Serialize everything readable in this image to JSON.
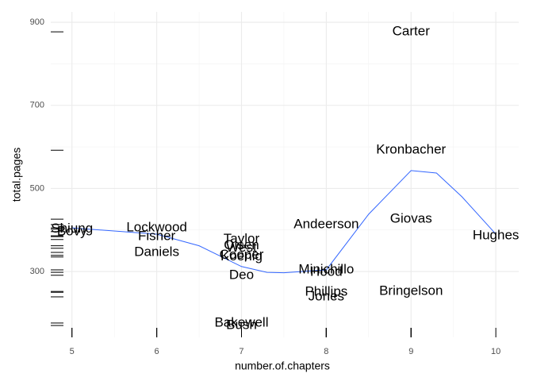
{
  "chart_data": {
    "type": "scatter",
    "x_label": "number.of.chapters",
    "y_label": "total.pages",
    "labels": [
      "Carter",
      "Kronbacher",
      "Giovas",
      "Bringelson",
      "Hughes",
      "Andeerson",
      "Minichillo",
      "Hood",
      "Phillips",
      "Jones",
      "Taylor",
      "Olsen",
      "West",
      "Cooper",
      "Koenig",
      "Deo",
      "Bakewell",
      "Bush",
      "Lockwood",
      "Fisher",
      "Daniels",
      "Shiung",
      "Bovy"
    ],
    "x": [
      9,
      9,
      9,
      9,
      10,
      8,
      8,
      8,
      8,
      8,
      7,
      7,
      7,
      7,
      7,
      7,
      7,
      7,
      6,
      6,
      6,
      5,
      5
    ],
    "values": [
      877,
      592,
      426,
      252,
      386,
      413,
      304,
      298,
      250,
      239,
      377,
      362,
      356,
      339,
      335,
      291,
      176,
      170,
      405,
      384,
      346,
      402,
      396
    ],
    "smooth": {
      "color": "#3366ff",
      "x": [
        5,
        6,
        6.5,
        7,
        7.3,
        7.5,
        8,
        8.5,
        9,
        9.3,
        9.6,
        10
      ],
      "values": [
        405,
        390,
        362,
        312,
        298,
        297,
        304,
        438,
        543,
        537,
        480,
        390
      ]
    },
    "xlim": [
      4.75,
      10.27
    ],
    "ylim": [
      141.5,
      925
    ],
    "xticks": [
      5,
      6,
      7,
      8,
      9,
      10
    ],
    "yticks": [
      300,
      500,
      700,
      900
    ],
    "grid": true,
    "minor_grid": true,
    "rug": true
  }
}
